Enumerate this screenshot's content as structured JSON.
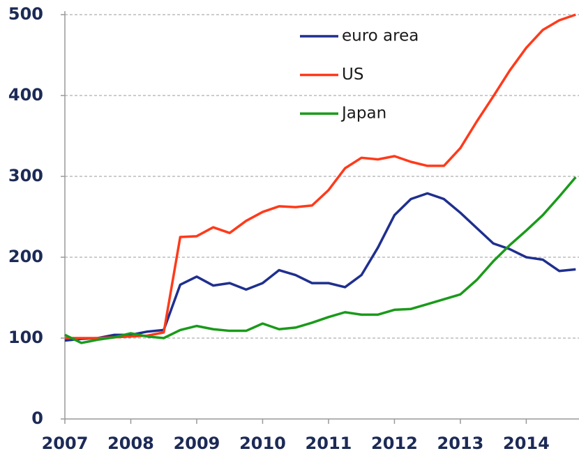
{
  "chart_data": {
    "type": "line",
    "x": [
      2007,
      2007.25,
      2007.5,
      2007.75,
      2008,
      2008.25,
      2008.5,
      2008.75,
      2009,
      2009.25,
      2009.5,
      2009.75,
      2010,
      2010.25,
      2010.5,
      2010.75,
      2011,
      2011.25,
      2011.5,
      2011.75,
      2012,
      2012.25,
      2012.5,
      2012.75,
      2013,
      2013.25,
      2013.5,
      2013.75,
      2014,
      2014.25,
      2014.5,
      2014.75
    ],
    "series": [
      {
        "name": "euro area",
        "color": "#1f2f8f",
        "values": [
          97,
          99,
          100,
          104,
          104,
          108,
          110,
          166,
          176,
          165,
          168,
          160,
          168,
          184,
          178,
          168,
          168,
          163,
          178,
          212,
          252,
          272,
          279,
          272,
          255,
          236,
          217,
          210,
          200,
          197,
          183,
          185
        ]
      },
      {
        "name": "US",
        "color": "#ff3a1a",
        "values": [
          100,
          100,
          100,
          101,
          102,
          103,
          107,
          225,
          226,
          237,
          230,
          245,
          256,
          263,
          262,
          264,
          283,
          310,
          323,
          321,
          325,
          318,
          313,
          313,
          335,
          368,
          399,
          431,
          459,
          481,
          493,
          500
        ]
      },
      {
        "name": "Japan",
        "color": "#1a9a1a",
        "values": [
          104,
          94,
          98,
          101,
          106,
          102,
          100,
          110,
          115,
          111,
          109,
          109,
          118,
          111,
          113,
          119,
          126,
          132,
          129,
          129,
          135,
          136,
          142,
          148,
          154,
          172,
          195,
          215,
          233,
          252,
          275,
          299
        ]
      }
    ],
    "xlim": [
      2007,
      2014.8
    ],
    "xticks": [
      2007,
      2008,
      2009,
      2010,
      2011,
      2012,
      2013,
      2014
    ],
    "ylim": [
      0,
      500
    ],
    "yticks": [
      0,
      100,
      200,
      300,
      400,
      500
    ],
    "grid": true
  }
}
